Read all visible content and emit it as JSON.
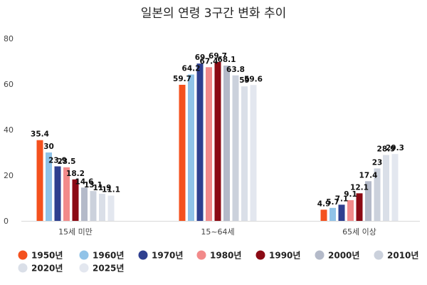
{
  "chart_data": {
    "type": "bar",
    "title": "일본의 연령 3구간 변화 추이",
    "categories": [
      "15세 미만",
      "15~64세",
      "65세 이상"
    ],
    "ylim": [
      0,
      80
    ],
    "yticks": [
      0,
      20,
      40,
      60,
      80
    ],
    "grid": false,
    "legend_position": "bottom",
    "series": [
      {
        "name": "1950년",
        "color": "#F4511E",
        "values": [
          35.4,
          59.7,
          4.9
        ]
      },
      {
        "name": "1960년",
        "color": "#90C3E8",
        "values": [
          30,
          64.2,
          5.7
        ]
      },
      {
        "name": "1970년",
        "color": "#2E3F8F",
        "values": [
          23.9,
          69,
          7.1
        ]
      },
      {
        "name": "1980년",
        "color": "#F28A8A",
        "values": [
          23.5,
          67.4,
          9.1
        ]
      },
      {
        "name": "1990년",
        "color": "#8B0A14",
        "values": [
          18.2,
          69.7,
          12.1
        ]
      },
      {
        "name": "2000년",
        "color": "#B4BAC9",
        "values": [
          14.6,
          68.1,
          17.4
        ]
      },
      {
        "name": "2010년",
        "color": "#CBD1DC",
        "values": [
          13.1,
          63.8,
          23
        ]
      },
      {
        "name": "2020년",
        "color": "#DADFE8",
        "values": [
          11.9,
          59,
          28.9
        ]
      },
      {
        "name": "2025년",
        "color": "#E3E7EF",
        "values": [
          11.1,
          59.6,
          29.3
        ]
      }
    ],
    "data_labels": [
      [
        "35.4",
        "30",
        "23.9",
        "23.5",
        "18.2",
        "14.6",
        "13.1",
        "11.9",
        "11.1"
      ],
      [
        "59.7",
        "64.2",
        "69",
        "67.4",
        "69.7",
        "68.1",
        "63.8",
        "59",
        "59.6"
      ],
      [
        "4.9",
        "5.7",
        "7.1",
        "9.1",
        "12.1",
        "17.4",
        "23",
        "28.9",
        "29.3"
      ]
    ]
  }
}
